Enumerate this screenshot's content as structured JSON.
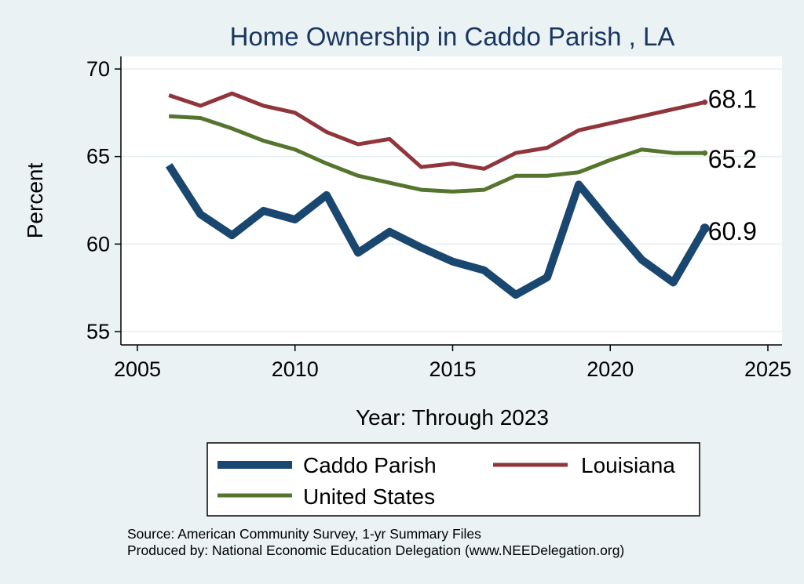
{
  "chart_data": {
    "type": "line",
    "title": "Home Ownership in Caddo Parish , LA",
    "xlabel": "Year: Through 2023",
    "ylabel": "Percent",
    "xlim": [
      2005,
      2025
    ],
    "ylim": [
      55,
      70
    ],
    "xticks": [
      "2005",
      "2010",
      "2015",
      "2020",
      "2025"
    ],
    "yticks": [
      "55",
      "60",
      "65",
      "70"
    ],
    "grid": true,
    "x": [
      2006,
      2007,
      2008,
      2009,
      2010,
      2011,
      2012,
      2013,
      2014,
      2015,
      2016,
      2017,
      2018,
      2019,
      2020,
      2021,
      2022,
      2023
    ],
    "series": [
      {
        "name": "Caddo Parish",
        "color": "#1a476f",
        "values": [
          64.5,
          61.7,
          60.5,
          61.9,
          61.4,
          62.8,
          59.5,
          60.7,
          59.8,
          59.0,
          58.5,
          57.1,
          58.1,
          63.4,
          61.2,
          59.1,
          57.8,
          60.9
        ],
        "end_label": "60.9"
      },
      {
        "name": "Louisiana",
        "color": "#90353b",
        "values": [
          68.5,
          67.9,
          68.6,
          67.9,
          67.5,
          66.4,
          65.7,
          66.0,
          64.4,
          64.6,
          64.3,
          65.2,
          65.5,
          66.5,
          66.9,
          67.3,
          67.7,
          68.1
        ],
        "end_label": "68.1"
      },
      {
        "name": "United States",
        "color": "#55752f",
        "values": [
          67.3,
          67.2,
          66.6,
          65.9,
          65.4,
          64.6,
          63.9,
          63.5,
          63.1,
          63.0,
          63.1,
          63.9,
          63.9,
          64.1,
          64.8,
          65.4,
          65.2,
          65.2
        ],
        "end_label": "65.2"
      }
    ],
    "legend_position": "bottom",
    "source": "Source: American Community Survey, 1-yr Summary Files",
    "produced_by": "Produced by: National Economic Education Delegation (www.NEEDelegation.org)"
  }
}
